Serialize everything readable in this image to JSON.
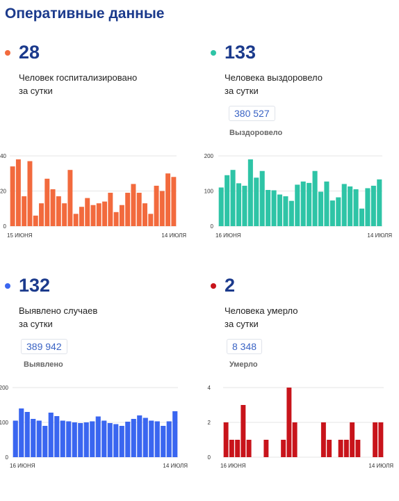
{
  "page": {
    "title": "Оперативные данные"
  },
  "colors": {
    "title": "#1b3a8c",
    "hospitalized": "#f26a3d",
    "recovered": "#2ec4a6",
    "cases": "#3a66f0",
    "deaths": "#c8141b"
  },
  "stats": [
    {
      "id": "hospitalized",
      "value": "28",
      "line1": "Человек госпитализировано",
      "line2": "за сутки",
      "total": "",
      "total_label": ""
    },
    {
      "id": "recovered",
      "value": "133",
      "line1": "Человека выздоровело",
      "line2": "за сутки",
      "total": "380 527",
      "total_label": "Выздоровело"
    },
    {
      "id": "cases",
      "value": "132",
      "line1": "Выявлено случаев",
      "line2": "за сутки",
      "total": "389 942",
      "total_label": "Выявлено"
    },
    {
      "id": "deaths",
      "value": "2",
      "line1": "Человека умерло",
      "line2": "за сутки",
      "total": "8 348",
      "total_label": "Умерло"
    }
  ],
  "chart_data": [
    {
      "type": "bar",
      "series_id": "hospitalized",
      "x_start_label": "15 июня",
      "x_end_label": "14 июля",
      "ylim": [
        0,
        40
      ],
      "y_ticks": [
        "0",
        "20",
        "40"
      ],
      "values": [
        34,
        38,
        17,
        37,
        6,
        13,
        27,
        21,
        17,
        13,
        32,
        7,
        11,
        16,
        12,
        13,
        14,
        19,
        8,
        12,
        19,
        24,
        19,
        13,
        7,
        23,
        20,
        30,
        28
      ]
    },
    {
      "type": "bar",
      "series_id": "recovered",
      "x_start_label": "16 июня",
      "x_end_label": "14 июля",
      "ylim": [
        0,
        200
      ],
      "y_ticks": [
        "0",
        "100",
        "200"
      ],
      "values": [
        110,
        145,
        160,
        122,
        115,
        190,
        138,
        157,
        103,
        102,
        90,
        85,
        72,
        118,
        127,
        123,
        157,
        98,
        127,
        73,
        82,
        120,
        113,
        105,
        50,
        108,
        115,
        133
      ]
    },
    {
      "type": "bar",
      "series_id": "cases",
      "x_start_label": "16 июня",
      "x_end_label": "14 июля",
      "ylim": [
        0,
        200
      ],
      "y_ticks": [
        "0",
        "100",
        "200"
      ],
      "values": [
        105,
        140,
        130,
        110,
        105,
        90,
        128,
        118,
        105,
        103,
        100,
        98,
        100,
        103,
        117,
        105,
        98,
        95,
        90,
        102,
        110,
        120,
        113,
        105,
        103,
        90,
        103,
        132
      ]
    },
    {
      "type": "bar",
      "series_id": "deaths",
      "x_start_label": "16 июня",
      "x_end_label": "14 июля",
      "ylim": [
        0,
        4
      ],
      "y_ticks": [
        "0",
        "2",
        "4"
      ],
      "values": [
        2,
        1,
        1,
        3,
        1,
        0,
        0,
        1,
        0,
        0,
        1,
        4,
        2,
        0,
        0,
        0,
        0,
        2,
        1,
        0,
        1,
        1,
        2,
        1,
        0,
        0,
        2,
        2
      ]
    }
  ]
}
